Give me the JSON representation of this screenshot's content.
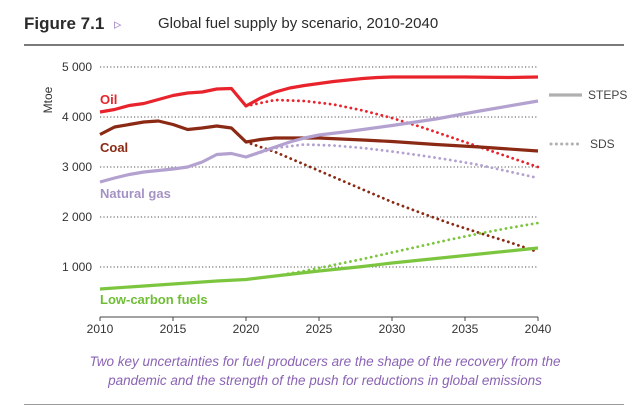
{
  "figure": {
    "label": "Figure 7.1",
    "arrow": "▹",
    "title": "Global fuel supply by scenario, 2010-2040",
    "caption_line1": "Two key uncertainties for fuel producers are the shape of the recovery from the",
    "caption_line2": "pandemic and the strength of the push for reductions in global emissions"
  },
  "chart_data": {
    "type": "line",
    "ylabel": "Mtoe",
    "xlabel": "",
    "xlim": [
      2010,
      2040
    ],
    "ylim": [
      0,
      5000
    ],
    "x_ticks": [
      "2010",
      "2015",
      "2020",
      "2025",
      "2030",
      "2035",
      "2040"
    ],
    "y_ticks": [
      "1 000",
      "2 000",
      "3 000",
      "4 000",
      "5 000"
    ],
    "grid": "horizontal dotted",
    "legend": {
      "position": "right",
      "entries": [
        {
          "label": "STEPS",
          "style": "solid",
          "color": "#b0b0b0"
        },
        {
          "label": "SDS",
          "style": "dotted",
          "color": "#b0b0b0"
        }
      ]
    },
    "series": [
      {
        "name": "Oil",
        "color": "#e8232b",
        "label_color": "#e8232b",
        "steps": [
          [
            2010,
            4100
          ],
          [
            2011,
            4150
          ],
          [
            2012,
            4230
          ],
          [
            2013,
            4270
          ],
          [
            2014,
            4350
          ],
          [
            2015,
            4430
          ],
          [
            2016,
            4480
          ],
          [
            2017,
            4500
          ],
          [
            2018,
            4560
          ],
          [
            2019,
            4570
          ],
          [
            2020,
            4220
          ],
          [
            2021,
            4380
          ],
          [
            2022,
            4500
          ],
          [
            2023,
            4580
          ],
          [
            2024,
            4630
          ],
          [
            2025,
            4670
          ],
          [
            2026,
            4710
          ],
          [
            2027,
            4740
          ],
          [
            2028,
            4770
          ],
          [
            2029,
            4790
          ],
          [
            2030,
            4800
          ],
          [
            2032,
            4800
          ],
          [
            2035,
            4800
          ],
          [
            2038,
            4790
          ],
          [
            2040,
            4800
          ]
        ],
        "sds": [
          [
            2020,
            4220
          ],
          [
            2022,
            4340
          ],
          [
            2024,
            4320
          ],
          [
            2026,
            4250
          ],
          [
            2028,
            4130
          ],
          [
            2030,
            3980
          ],
          [
            2032,
            3800
          ],
          [
            2034,
            3600
          ],
          [
            2036,
            3400
          ],
          [
            2038,
            3200
          ],
          [
            2040,
            3000
          ]
        ]
      },
      {
        "name": "Coal",
        "color": "#8b2a14",
        "label_color": "#8b2a14",
        "steps": [
          [
            2010,
            3650
          ],
          [
            2011,
            3800
          ],
          [
            2012,
            3850
          ],
          [
            2013,
            3900
          ],
          [
            2014,
            3920
          ],
          [
            2015,
            3850
          ],
          [
            2016,
            3750
          ],
          [
            2017,
            3780
          ],
          [
            2018,
            3820
          ],
          [
            2019,
            3780
          ],
          [
            2020,
            3500
          ],
          [
            2021,
            3550
          ],
          [
            2022,
            3580
          ],
          [
            2025,
            3580
          ],
          [
            2028,
            3540
          ],
          [
            2030,
            3510
          ],
          [
            2033,
            3450
          ],
          [
            2036,
            3400
          ],
          [
            2040,
            3320
          ]
        ],
        "sds": [
          [
            2020,
            3500
          ],
          [
            2022,
            3300
          ],
          [
            2024,
            3050
          ],
          [
            2026,
            2800
          ],
          [
            2028,
            2550
          ],
          [
            2030,
            2300
          ],
          [
            2032,
            2080
          ],
          [
            2034,
            1870
          ],
          [
            2036,
            1680
          ],
          [
            2038,
            1500
          ],
          [
            2040,
            1300
          ]
        ]
      },
      {
        "name": "Natural gas",
        "color": "#b3a1d0",
        "label_color": "#a592c5",
        "steps": [
          [
            2010,
            2700
          ],
          [
            2011,
            2780
          ],
          [
            2012,
            2850
          ],
          [
            2013,
            2900
          ],
          [
            2014,
            2930
          ],
          [
            2015,
            2960
          ],
          [
            2016,
            3000
          ],
          [
            2017,
            3100
          ],
          [
            2018,
            3250
          ],
          [
            2019,
            3270
          ],
          [
            2020,
            3200
          ],
          [
            2021,
            3300
          ],
          [
            2022,
            3400
          ],
          [
            2023,
            3500
          ],
          [
            2024,
            3580
          ],
          [
            2025,
            3640
          ],
          [
            2027,
            3710
          ],
          [
            2030,
            3830
          ],
          [
            2033,
            3960
          ],
          [
            2036,
            4120
          ],
          [
            2040,
            4320
          ]
        ],
        "sds": [
          [
            2020,
            3200
          ],
          [
            2022,
            3380
          ],
          [
            2024,
            3450
          ],
          [
            2026,
            3430
          ],
          [
            2028,
            3380
          ],
          [
            2030,
            3310
          ],
          [
            2032,
            3230
          ],
          [
            2034,
            3140
          ],
          [
            2036,
            3040
          ],
          [
            2038,
            2910
          ],
          [
            2040,
            2780
          ]
        ]
      },
      {
        "name": "Low-carbon fuels",
        "color": "#7cc63f",
        "label_color": "#6fbd35",
        "steps": [
          [
            2010,
            560
          ],
          [
            2012,
            600
          ],
          [
            2014,
            640
          ],
          [
            2016,
            680
          ],
          [
            2018,
            720
          ],
          [
            2020,
            750
          ],
          [
            2022,
            820
          ],
          [
            2025,
            920
          ],
          [
            2028,
            1010
          ],
          [
            2030,
            1080
          ],
          [
            2033,
            1170
          ],
          [
            2036,
            1260
          ],
          [
            2040,
            1380
          ]
        ],
        "sds": [
          [
            2020,
            750
          ],
          [
            2022,
            820
          ],
          [
            2024,
            920
          ],
          [
            2026,
            1040
          ],
          [
            2028,
            1160
          ],
          [
            2030,
            1290
          ],
          [
            2032,
            1420
          ],
          [
            2034,
            1550
          ],
          [
            2036,
            1670
          ],
          [
            2038,
            1780
          ],
          [
            2040,
            1880
          ]
        ]
      }
    ]
  }
}
